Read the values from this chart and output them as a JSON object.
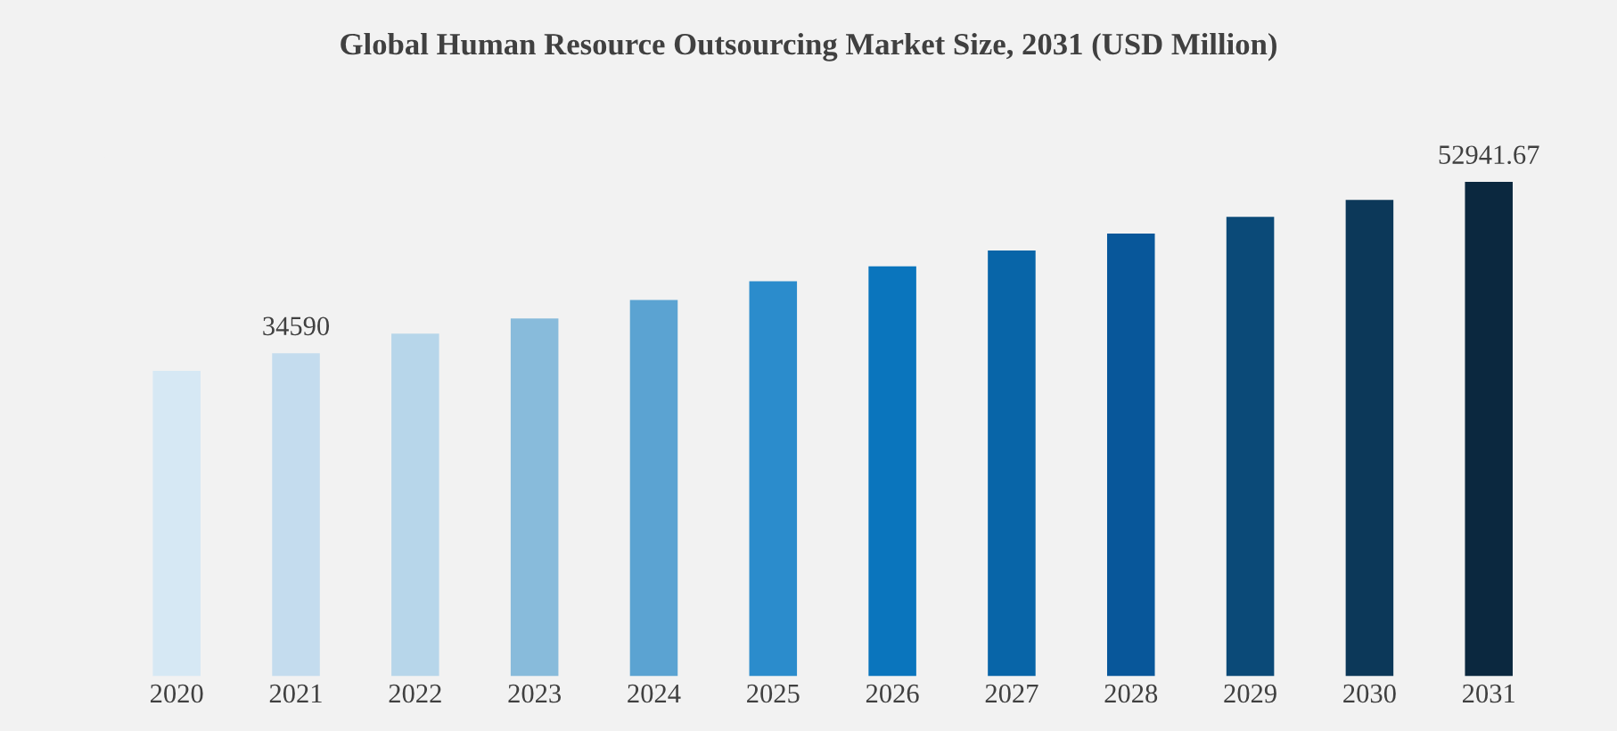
{
  "chart_data": {
    "type": "bar",
    "title": "Global Human Resource Outsourcing Market Size, 2031 (USD Million)",
    "categories": [
      "2020",
      "2021",
      "2022",
      "2023",
      "2024",
      "2025",
      "2026",
      "2027",
      "2028",
      "2029",
      "2030",
      "2031"
    ],
    "values": [
      32700,
      34590,
      36700,
      38300,
      40300,
      42300,
      43900,
      45600,
      47400,
      49200,
      51000,
      52941.67
    ],
    "value_labels": [
      null,
      "34590",
      null,
      null,
      null,
      null,
      null,
      null,
      null,
      null,
      null,
      "52941.67"
    ],
    "colors": [
      "#d6e8f4",
      "#c4dcee",
      "#b7d6ea",
      "#88bbdb",
      "#5ba3d2",
      "#2b8ccc",
      "#0a75bd",
      "#0865a8",
      "#08579a",
      "#0b4a78",
      "#0c3859",
      "#0b283f"
    ],
    "grid": false,
    "legend": false
  }
}
